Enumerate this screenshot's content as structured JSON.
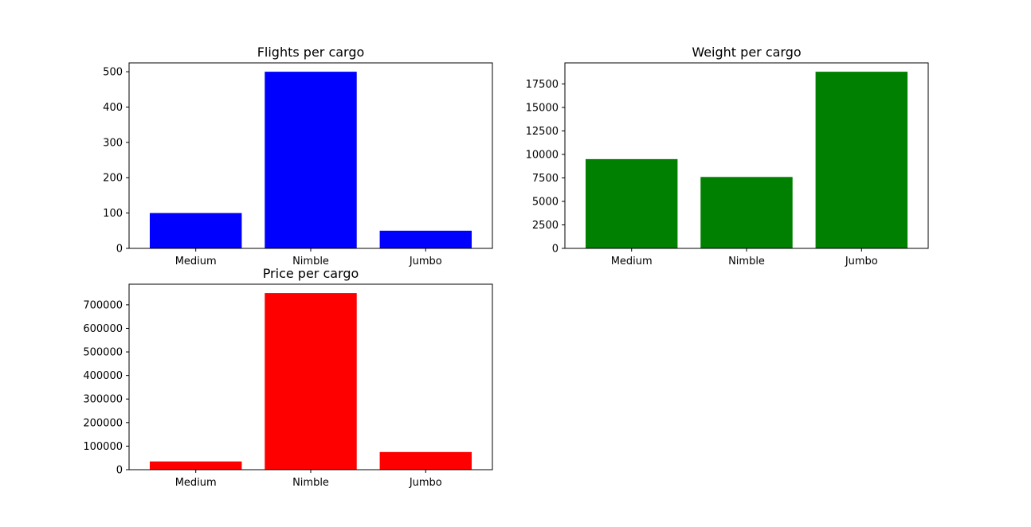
{
  "chart_data": [
    {
      "type": "bar",
      "title": "Flights per cargo",
      "xlabel": "",
      "ylabel": "",
      "categories": [
        "Medium",
        "Nimble",
        "Jumbo"
      ],
      "values": [
        100,
        500,
        50
      ],
      "color": "#0000ff",
      "ylim": [
        0,
        525
      ],
      "yticks": [
        0,
        100,
        200,
        300,
        400,
        500
      ],
      "grid": false
    },
    {
      "type": "bar",
      "title": "Weight per cargo",
      "xlabel": "",
      "ylabel": "",
      "categories": [
        "Medium",
        "Nimble",
        "Jumbo"
      ],
      "values": [
        9500,
        7600,
        18800
      ],
      "color": "#008000",
      "ylim": [
        0,
        19740
      ],
      "yticks": [
        0,
        2500,
        5000,
        7500,
        10000,
        12500,
        15000,
        17500
      ],
      "grid": false
    },
    {
      "type": "bar",
      "title": "Price per cargo",
      "xlabel": "",
      "ylabel": "",
      "categories": [
        "Medium",
        "Nimble",
        "Jumbo"
      ],
      "values": [
        35000,
        750000,
        75000
      ],
      "color": "#ff0000",
      "ylim": [
        0,
        787500
      ],
      "yticks": [
        0,
        100000,
        200000,
        300000,
        400000,
        500000,
        600000,
        700000
      ],
      "grid": false
    }
  ]
}
